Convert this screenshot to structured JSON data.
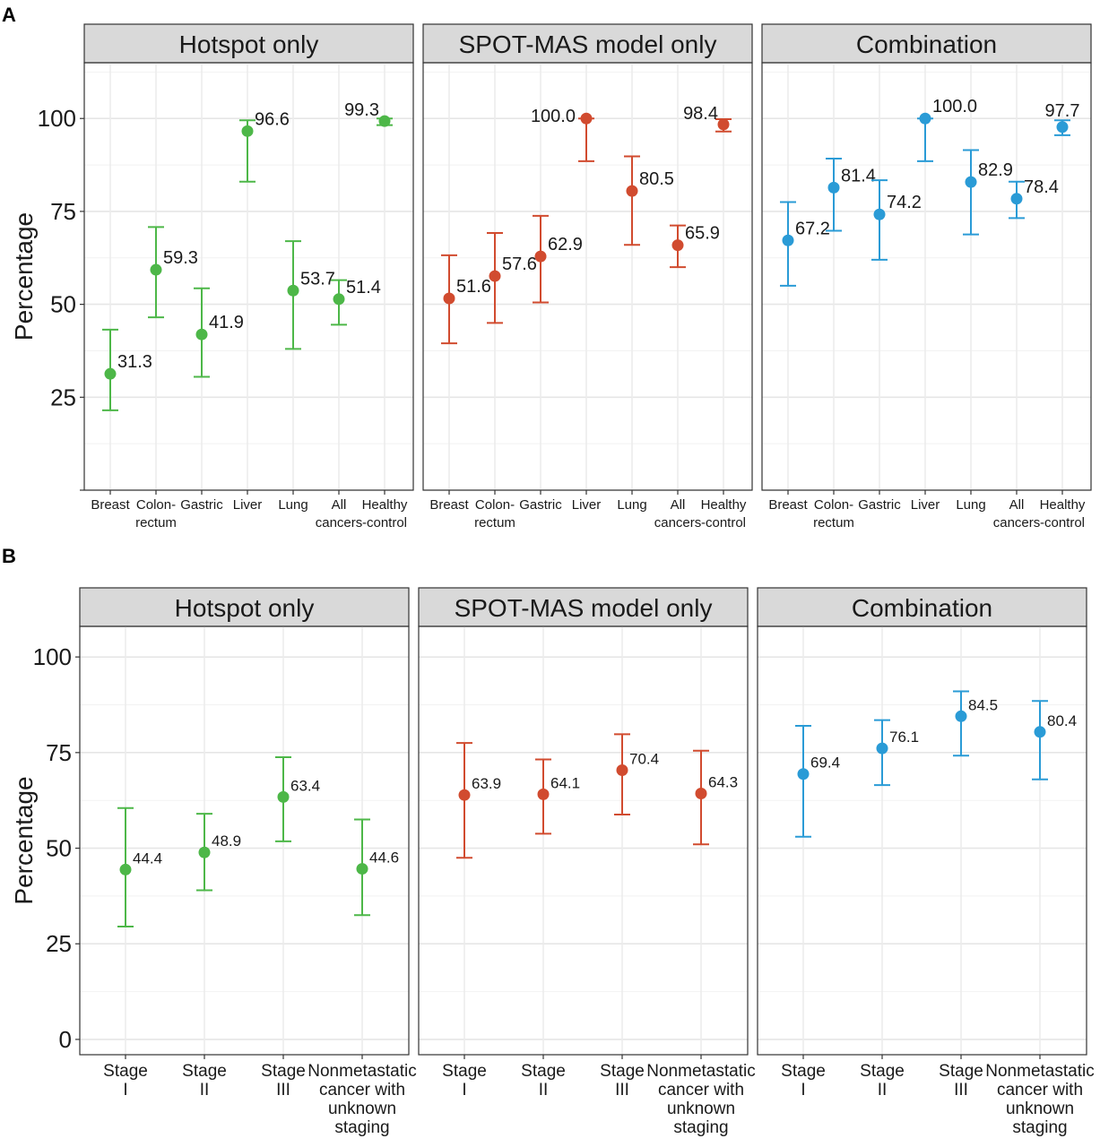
{
  "figure": {
    "panel_labels": [
      "A",
      "B"
    ],
    "colors": {
      "hotspot": "#4db748",
      "spotmas": "#d14b2f",
      "combination": "#2a9bd6"
    }
  },
  "chart_data": [
    {
      "id": "A-hotspot",
      "panel": "A",
      "type": "scatter",
      "facet_title": "Hotspot only",
      "ylabel": "Percentage",
      "ylim": [
        0,
        115
      ],
      "yticks": [
        "25",
        "50",
        "75",
        "100"
      ],
      "grid": true,
      "color": "#4db748",
      "categories": [
        [
          "Breast"
        ],
        [
          "Colon-",
          "rectum"
        ],
        [
          "Gastric"
        ],
        [
          "Liver"
        ],
        [
          "Lung"
        ],
        [
          "All",
          "cancers"
        ],
        [
          "Healthy",
          "-control"
        ]
      ],
      "values": [
        31.3,
        59.3,
        41.9,
        96.6,
        53.7,
        51.4,
        99.3
      ],
      "labels": [
        "31.3",
        "59.3",
        "41.9",
        "96.6",
        "53.7",
        "51.4",
        "99.3"
      ],
      "ci_low": [
        21.5,
        46.5,
        30.5,
        83,
        38,
        44.5,
        98.2
      ],
      "ci_high": [
        43.2,
        70.8,
        54.3,
        99.5,
        67,
        56.5,
        100
      ]
    },
    {
      "id": "A-spotmas",
      "panel": "A",
      "type": "scatter",
      "facet_title": "SPOT-MAS model only",
      "ylim": [
        0,
        115
      ],
      "grid": true,
      "color": "#d14b2f",
      "categories": [
        [
          "Breast"
        ],
        [
          "Colon-",
          "rectum"
        ],
        [
          "Gastric"
        ],
        [
          "Liver"
        ],
        [
          "Lung"
        ],
        [
          "All",
          "cancers"
        ],
        [
          "Healthy",
          "-control"
        ]
      ],
      "values": [
        51.6,
        57.6,
        62.9,
        100.0,
        80.5,
        65.9,
        98.4
      ],
      "labels": [
        "51.6",
        "57.6",
        "62.9",
        "100.0",
        "80.5",
        "65.9",
        "98.4"
      ],
      "ci_low": [
        39.5,
        45,
        50.5,
        88.5,
        66,
        60,
        96.5
      ],
      "ci_high": [
        63.2,
        69.2,
        73.8,
        100,
        89.8,
        71.2,
        99.8
      ]
    },
    {
      "id": "A-combination",
      "panel": "A",
      "type": "scatter",
      "facet_title": "Combination",
      "ylim": [
        0,
        115
      ],
      "grid": true,
      "color": "#2a9bd6",
      "categories": [
        [
          "Breast"
        ],
        [
          "Colon-",
          "rectum"
        ],
        [
          "Gastric"
        ],
        [
          "Liver"
        ],
        [
          "Lung"
        ],
        [
          "All",
          "cancers"
        ],
        [
          "Healthy",
          "-control"
        ]
      ],
      "values": [
        67.2,
        81.4,
        74.2,
        100.0,
        82.9,
        78.4,
        97.7
      ],
      "labels": [
        "67.2",
        "81.4",
        "74.2",
        "100.0",
        "82.9",
        "78.4",
        "97.7"
      ],
      "ci_low": [
        55,
        69.8,
        62,
        88.5,
        68.8,
        73.2,
        95.5
      ],
      "ci_high": [
        77.5,
        89.2,
        83.4,
        100,
        91.5,
        83,
        99.5
      ]
    },
    {
      "id": "B-hotspot",
      "panel": "B",
      "type": "scatter",
      "facet_title": "Hotspot only",
      "ylabel": "Percentage",
      "ylim": [
        -4,
        108
      ],
      "yticks": [
        "0",
        "25",
        "50",
        "75",
        "100"
      ],
      "grid": true,
      "color": "#4db748",
      "categories": [
        [
          "Stage",
          "I"
        ],
        [
          "Stage",
          "II"
        ],
        [
          "Stage",
          "III"
        ],
        [
          "Nonmetastatic",
          "cancer with",
          "unknown",
          "staging"
        ]
      ],
      "values": [
        44.4,
        48.9,
        63.4,
        44.6
      ],
      "labels": [
        "44.4",
        "48.9",
        "63.4",
        "44.6"
      ],
      "ci_low": [
        29.5,
        39,
        51.8,
        32.5
      ],
      "ci_high": [
        60.5,
        59,
        73.8,
        57.5
      ]
    },
    {
      "id": "B-spotmas",
      "panel": "B",
      "type": "scatter",
      "facet_title": "SPOT-MAS model only",
      "ylim": [
        -4,
        108
      ],
      "grid": true,
      "color": "#d14b2f",
      "categories": [
        [
          "Stage",
          "I"
        ],
        [
          "Stage",
          "II"
        ],
        [
          "Stage",
          "III"
        ],
        [
          "Nonmetastatic",
          "cancer with",
          "unknown",
          "staging"
        ]
      ],
      "values": [
        63.9,
        64.1,
        70.4,
        64.3
      ],
      "labels": [
        "63.9",
        "64.1",
        "70.4",
        "64.3"
      ],
      "ci_low": [
        47.5,
        53.8,
        58.8,
        51
      ],
      "ci_high": [
        77.5,
        73.2,
        79.8,
        75.5
      ]
    },
    {
      "id": "B-combination",
      "panel": "B",
      "type": "scatter",
      "facet_title": "Combination",
      "ylim": [
        -4,
        108
      ],
      "grid": true,
      "color": "#2a9bd6",
      "categories": [
        [
          "Stage",
          "I"
        ],
        [
          "Stage",
          "II"
        ],
        [
          "Stage",
          "III"
        ],
        [
          "Nonmetastatic",
          "cancer with",
          "unknown",
          "staging"
        ]
      ],
      "values": [
        69.4,
        76.1,
        84.5,
        80.4
      ],
      "labels": [
        "69.4",
        "76.1",
        "84.5",
        "80.4"
      ],
      "ci_low": [
        53,
        66.5,
        74.2,
        68
      ],
      "ci_high": [
        82,
        83.5,
        91,
        88.5
      ]
    }
  ]
}
